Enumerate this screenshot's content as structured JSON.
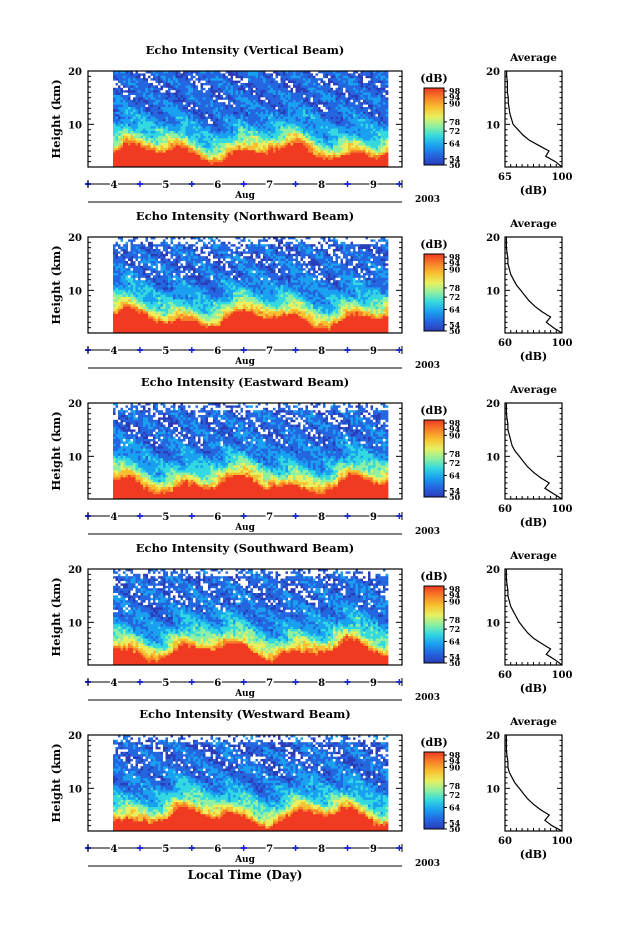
{
  "figure": {
    "xlabel": "Local Time (Day)",
    "avg_title": "Average",
    "ylabel": "Height (km)",
    "cbar_unit": "(dB)",
    "avg_xunit": "(dB)",
    "month_label": "Aug",
    "year_label": "2003",
    "colors": {
      "colormap": [
        "#2b3cb8",
        "#2466e0",
        "#1aa0f0",
        "#34d8e0",
        "#8ef0a0",
        "#e8f060",
        "#f8c030",
        "#f88028",
        "#f03a22"
      ],
      "background": "#ffffff",
      "axes": "#000000",
      "day_marker": "#1a2ad0"
    }
  },
  "chart_data": [
    {
      "type": "heatmap",
      "title": "Echo Intensity (Vertical Beam)",
      "xlabel": "Aug",
      "ylabel": "Height (km)",
      "x_ticks": [
        4,
        5,
        6,
        7,
        8,
        9
      ],
      "xlim": [
        3.5,
        9.55
      ],
      "y_ticks": [
        10,
        20
      ],
      "ylim": [
        2,
        20
      ],
      "colorbar": {
        "label": "(dB)",
        "ticks": [
          50,
          54,
          64,
          72,
          78,
          90,
          94,
          98
        ],
        "range": [
          50,
          100
        ]
      },
      "average_profile": {
        "title": "Average",
        "xlabel": "(dB)",
        "xlim": [
          65,
          100
        ],
        "x_ticks": [
          65,
          100
        ],
        "ylim": [
          2,
          20
        ],
        "y_ticks": [
          10,
          20
        ],
        "height_km": [
          2,
          3,
          4,
          5,
          6,
          7,
          8,
          9,
          10,
          11,
          12,
          13,
          14,
          15,
          16,
          17,
          18,
          19,
          20
        ],
        "db": [
          100,
          96,
          90,
          92,
          86,
          80,
          76,
          73,
          70,
          69,
          68,
          67.5,
          67,
          67,
          66.5,
          66.5,
          66.5,
          66,
          66
        ]
      }
    },
    {
      "type": "heatmap",
      "title": "Echo Intensity (Northward Beam)",
      "xlabel": "Aug",
      "ylabel": "Height (km)",
      "x_ticks": [
        4,
        5,
        6,
        7,
        8,
        9
      ],
      "xlim": [
        3.5,
        9.55
      ],
      "y_ticks": [
        10,
        20
      ],
      "ylim": [
        2,
        20
      ],
      "colorbar": {
        "label": "(dB)",
        "ticks": [
          50,
          54,
          64,
          72,
          78,
          90,
          94,
          98
        ],
        "range": [
          50,
          100
        ]
      },
      "average_profile": {
        "title": "Average",
        "xlabel": "(dB)",
        "xlim": [
          60,
          100
        ],
        "x_ticks": [
          60,
          100
        ],
        "ylim": [
          2,
          20
        ],
        "y_ticks": [
          10,
          20
        ],
        "height_km": [
          2,
          3,
          4,
          5,
          6,
          7,
          8,
          9,
          10,
          11,
          12,
          13,
          14,
          15,
          16,
          17,
          18,
          19,
          20
        ],
        "db": [
          100,
          94,
          89,
          92,
          86,
          81,
          77,
          74,
          71,
          68,
          66,
          64,
          63,
          62,
          62,
          61.5,
          61,
          61,
          61
        ]
      }
    },
    {
      "type": "heatmap",
      "title": "Echo Intensity (Eastward Beam)",
      "xlabel": "Aug",
      "ylabel": "Height (km)",
      "x_ticks": [
        4,
        5,
        6,
        7,
        8,
        9
      ],
      "xlim": [
        3.5,
        9.55
      ],
      "y_ticks": [
        10,
        20
      ],
      "ylim": [
        2,
        20
      ],
      "colorbar": {
        "label": "(dB)",
        "ticks": [
          50,
          54,
          64,
          72,
          78,
          90,
          94,
          98
        ],
        "range": [
          50,
          100
        ]
      },
      "average_profile": {
        "title": "Average",
        "xlabel": "(dB)",
        "xlim": [
          60,
          100
        ],
        "x_ticks": [
          60,
          100
        ],
        "ylim": [
          2,
          20
        ],
        "y_ticks": [
          10,
          20
        ],
        "height_km": [
          2,
          3,
          4,
          5,
          6,
          7,
          8,
          9,
          10,
          11,
          12,
          13,
          14,
          15,
          16,
          17,
          18,
          19,
          20
        ],
        "db": [
          100,
          94,
          88,
          91,
          85,
          80,
          76,
          73,
          70,
          67,
          65,
          64,
          63,
          62,
          62,
          61.5,
          61,
          61,
          61
        ]
      }
    },
    {
      "type": "heatmap",
      "title": "Echo Intensity (Southward Beam)",
      "xlabel": "Aug",
      "ylabel": "Height (km)",
      "x_ticks": [
        4,
        5,
        6,
        7,
        8,
        9
      ],
      "xlim": [
        3.5,
        9.55
      ],
      "y_ticks": [
        10,
        20
      ],
      "ylim": [
        2,
        20
      ],
      "colorbar": {
        "label": "(dB)",
        "ticks": [
          50,
          54,
          64,
          72,
          78,
          90,
          94,
          98
        ],
        "range": [
          50,
          100
        ]
      },
      "average_profile": {
        "title": "Average",
        "xlabel": "(dB)",
        "xlim": [
          60,
          100
        ],
        "x_ticks": [
          60,
          100
        ],
        "ylim": [
          2,
          20
        ],
        "y_ticks": [
          10,
          20
        ],
        "height_km": [
          2,
          3,
          4,
          5,
          6,
          7,
          8,
          9,
          10,
          11,
          12,
          13,
          14,
          15,
          16,
          17,
          18,
          19,
          20
        ],
        "db": [
          100,
          95,
          89,
          92,
          86,
          80,
          76,
          73,
          70,
          68,
          66,
          64,
          63,
          62,
          62,
          61.5,
          61,
          61,
          61
        ]
      }
    },
    {
      "type": "heatmap",
      "title": "Echo Intensity (Westward Beam)",
      "xlabel": "Aug",
      "ylabel": "Height (km)",
      "x_ticks": [
        4,
        5,
        6,
        7,
        8,
        9
      ],
      "xlim": [
        3.5,
        9.55
      ],
      "y_ticks": [
        10,
        20
      ],
      "ylim": [
        2,
        20
      ],
      "colorbar": {
        "label": "(dB)",
        "ticks": [
          50,
          54,
          64,
          72,
          78,
          90,
          94,
          98
        ],
        "range": [
          50,
          100
        ]
      },
      "average_profile": {
        "title": "Average",
        "xlabel": "(dB)",
        "xlim": [
          60,
          100
        ],
        "x_ticks": [
          60,
          100
        ],
        "ylim": [
          2,
          20
        ],
        "y_ticks": [
          10,
          20
        ],
        "height_km": [
          2,
          3,
          4,
          5,
          6,
          7,
          8,
          9,
          10,
          11,
          12,
          13,
          14,
          15,
          16,
          17,
          18,
          19,
          20
        ],
        "db": [
          100,
          93,
          88,
          91,
          85,
          80,
          76,
          73,
          70,
          67,
          65,
          63,
          62,
          62,
          61.5,
          61,
          61,
          61,
          61
        ]
      }
    }
  ]
}
